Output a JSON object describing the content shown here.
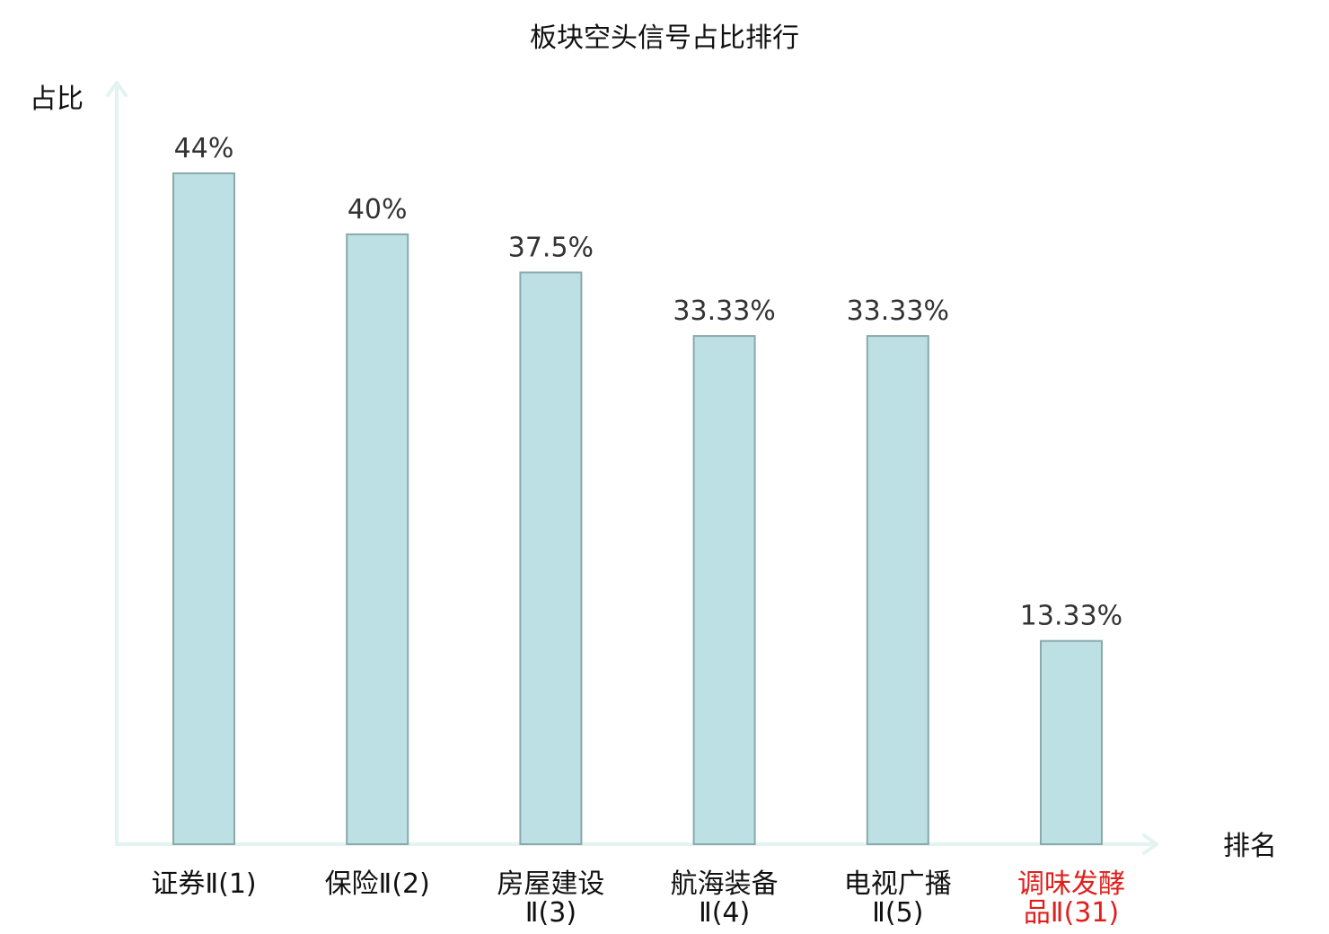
{
  "chart_data": {
    "type": "bar",
    "title": "板块空头信号占比排行",
    "ylabel": "占比",
    "xlabel": "排名",
    "ylim": [
      0,
      50
    ],
    "grid": false,
    "categories": [
      {
        "lines": [
          "证券Ⅱ(1)"
        ],
        "highlight": false
      },
      {
        "lines": [
          "保险Ⅱ(2)"
        ],
        "highlight": false
      },
      {
        "lines": [
          "房屋建设",
          "Ⅱ(3)"
        ],
        "highlight": false
      },
      {
        "lines": [
          "航海装备",
          "Ⅱ(4)"
        ],
        "highlight": false
      },
      {
        "lines": [
          "电视广播",
          "Ⅱ(5)"
        ],
        "highlight": false
      },
      {
        "lines": [
          "调味发酵",
          "品Ⅱ(31)"
        ],
        "highlight": true
      }
    ],
    "values": [
      44,
      40,
      37.5,
      33.33,
      33.33,
      13.33
    ],
    "data_labels": [
      "44%",
      "40%",
      "37.5%",
      "33.33%",
      "33.33%",
      "13.33%"
    ],
    "colors": {
      "bar_fill": "#bce0e3",
      "bar_stroke": "#8aa9ab",
      "axis": "#e3f3f1",
      "highlight_label": "#e0201c"
    }
  }
}
